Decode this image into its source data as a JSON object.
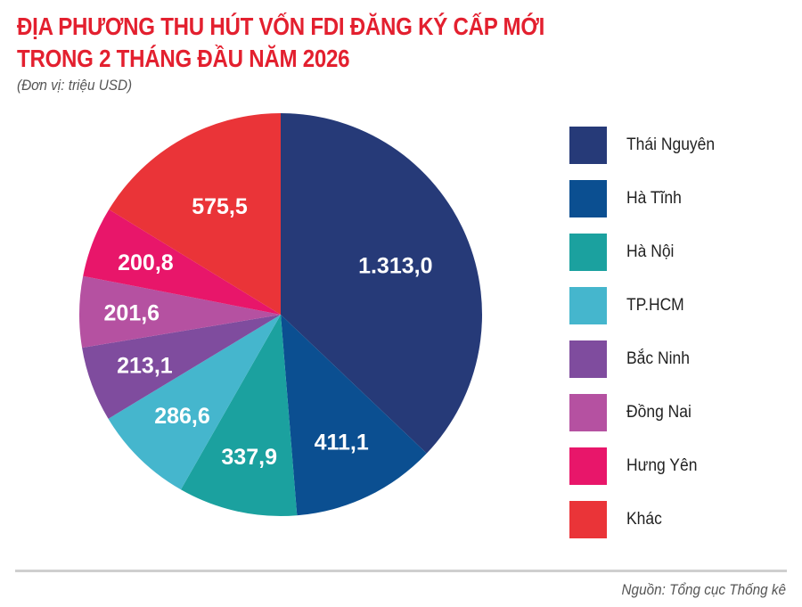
{
  "header": {
    "title_line1": "ĐỊA PHƯƠNG THU HÚT VỐN FDI ĐĂNG KÝ CẤP MỚI",
    "title_line2": "TRONG 2 THÁNG ĐẦU NĂM 2026",
    "unit": "(Đơn vị: triệu USD)"
  },
  "footer": {
    "source": "Nguồn: Tổng cục Thống kê"
  },
  "chart_data": {
    "type": "pie",
    "title": "ĐỊA PHƯƠNG THU HÚT VỐN FDI ĐĂNG KÝ CẤP MỚI TRONG 2 THÁNG ĐẦU NĂM 2026",
    "subtitle": "(Đơn vị: triệu USD)",
    "unit": "triệu USD",
    "legend_position": "right",
    "categories": [
      "Thái Nguyên",
      "Hà Tĩnh",
      "Hà Nội",
      "TP.HCM",
      "Bắc Ninh",
      "Đồng Nai",
      "Hưng Yên",
      "Khác"
    ],
    "values": [
      1313.0,
      411.1,
      337.9,
      286.6,
      213.1,
      201.6,
      200.8,
      575.5
    ],
    "labels": [
      "1.313,0",
      "411,1",
      "337,9",
      "286,6",
      "213,1",
      "201,6",
      "200,8",
      "575,5"
    ],
    "colors": [
      "#263a78",
      "#0b4f91",
      "#1ba19f",
      "#45b6cd",
      "#7f4c9e",
      "#b551a1",
      "#e8166a",
      "#ea3438"
    ],
    "start_angle": "12 o'clock",
    "direction": "clockwise",
    "source": "Nguồn: Tổng cục Thống kê"
  }
}
